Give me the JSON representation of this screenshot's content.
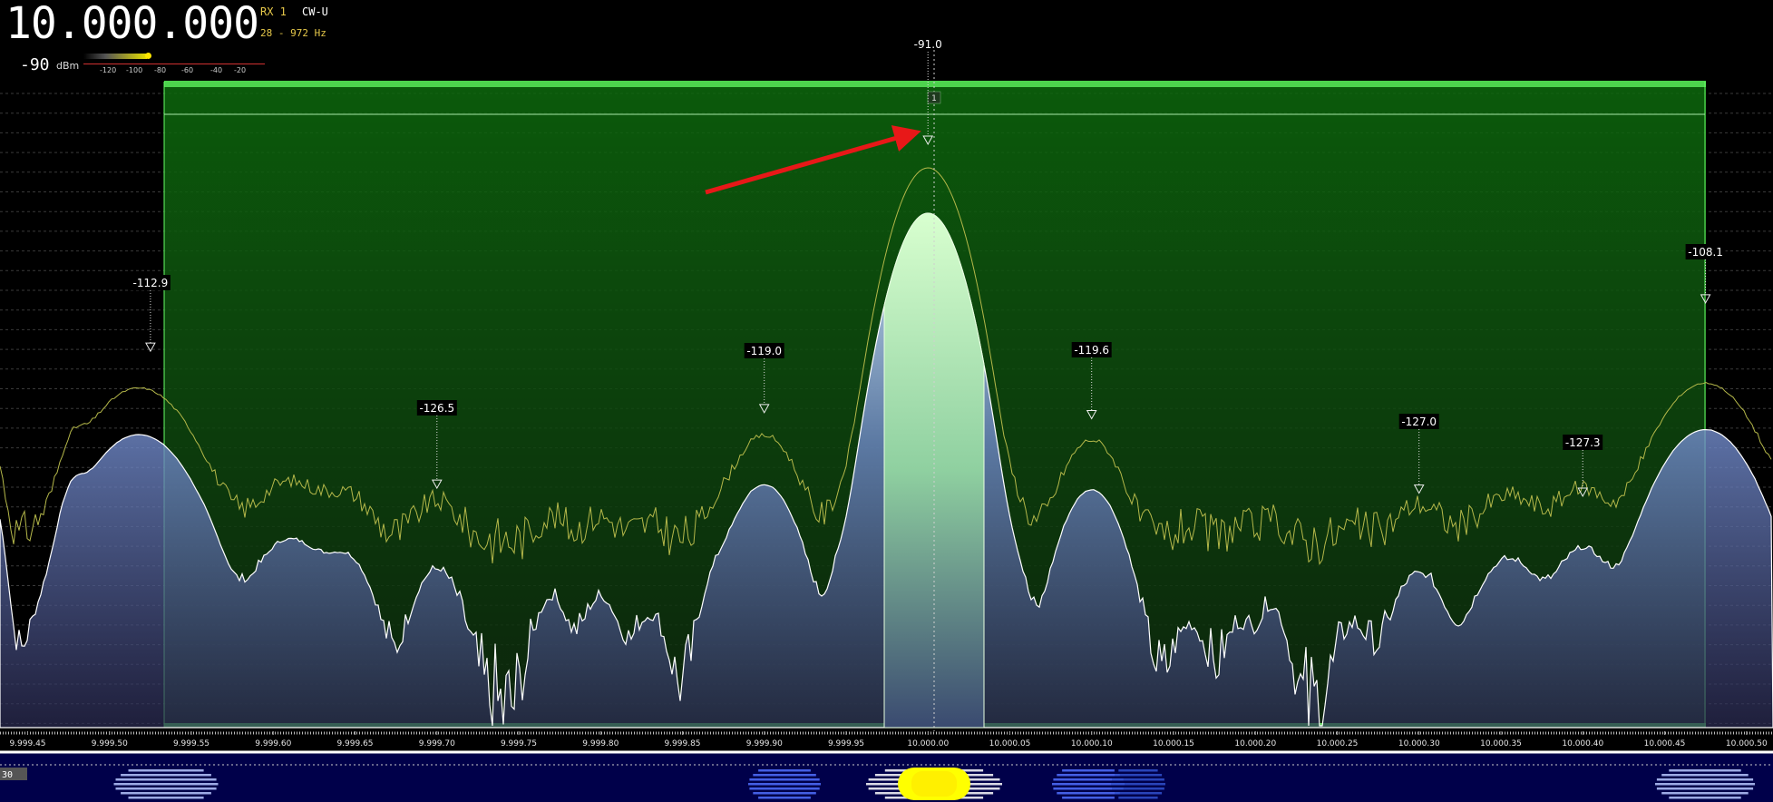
{
  "frequency": "10.000.000",
  "receiver": "RX 1",
  "mode": "CW-U",
  "bandwidth": "28 - 972 Hz",
  "smeter": {
    "value": "-90",
    "unit": "dBm",
    "ticks": [
      "-120",
      "-100",
      "-80",
      "-60",
      "-40",
      "-20"
    ],
    "level_dbm": -90
  },
  "axis_labels": [
    "9.999.45",
    "9.999.50",
    "9.999.55",
    "9.999.60",
    "9.999.65",
    "9.999.70",
    "9.999.75",
    "9.999.80",
    "9.999.85",
    "9.999.90",
    "9.999.95",
    "10.000.00",
    "10.000.05",
    "10.000.10",
    "10.000.15",
    "10.000.20",
    "10.000.25",
    "10.000.30",
    "10.000.35",
    "10.000.40",
    "10.000.45",
    "10.000.50"
  ],
  "peaks": [
    {
      "label": "-112.9",
      "freq_hz": 9999.525
    },
    {
      "label": "-126.5",
      "freq_hz": 9999.7
    },
    {
      "label": "-119.0",
      "freq_hz": 9999.9
    },
    {
      "label": "-91.0",
      "freq_hz": 10000.0
    },
    {
      "label": "-119.6",
      "freq_hz": 10000.1
    },
    {
      "label": "-127.0",
      "freq_hz": 10000.3
    },
    {
      "label": "-127.3",
      "freq_hz": 10000.4
    },
    {
      "label": "-108.1",
      "freq_hz": 10000.475
    }
  ],
  "center_marker": "1",
  "waterfall_scale": "30",
  "colors": {
    "passband": "#0a5e0a",
    "passband_edge": "#4dd34d",
    "trace_fill_top": "#b8d8ff",
    "trace_fill_bottom": "#3a3a70",
    "hold_trace": "#b5b84a",
    "arrow": "#e81818",
    "freq_accent": "#e6c84a"
  }
}
